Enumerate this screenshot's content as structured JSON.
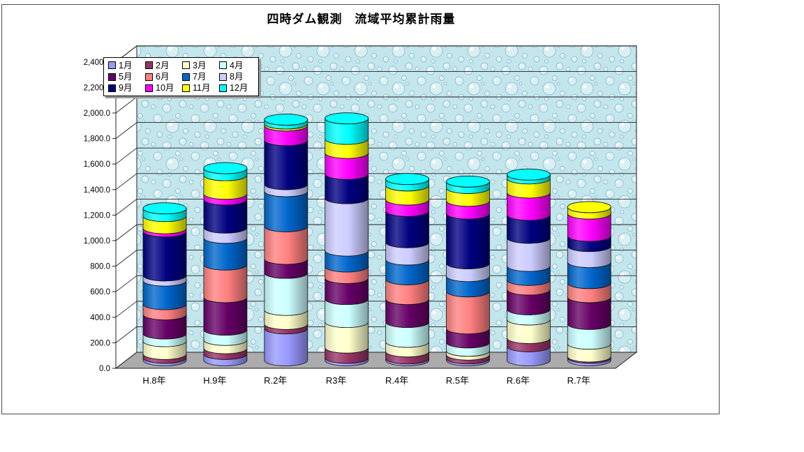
{
  "window": {
    "background": "#FFFFFF",
    "frame_border_color": "#4A4A4A"
  },
  "chart_data": {
    "type": "bar",
    "subtype": "3d-stacked-cylinder",
    "title": "四時ダム観測　流域平均累計雨量",
    "categories": [
      "H.8年",
      "H.9年",
      "R.2年",
      "R3年",
      "R.4年",
      "R.5年",
      "R.6年",
      "R.7年"
    ],
    "series": [
      {
        "name": "1月",
        "color": "#9999FF",
        "values": [
          20,
          50,
          250,
          20,
          15,
          15,
          110,
          20
        ]
      },
      {
        "name": "2月",
        "color": "#993366",
        "values": [
          30,
          45,
          35,
          80,
          55,
          30,
          65,
          10
        ]
      },
      {
        "name": "3月",
        "color": "#FFFFCC",
        "values": [
          100,
          65,
          110,
          200,
          75,
          30,
          145,
          100
        ]
      },
      {
        "name": "4月",
        "color": "#CCFFFF",
        "values": [
          60,
          80,
          290,
          180,
          155,
          65,
          80,
          155
        ]
      },
      {
        "name": "5月",
        "color": "#660066",
        "values": [
          150,
          255,
          110,
          165,
          180,
          110,
          155,
          210
        ]
      },
      {
        "name": "6月",
        "color": "#FF8080",
        "values": [
          80,
          255,
          255,
          90,
          155,
          290,
          75,
          110
        ]
      },
      {
        "name": "7月",
        "color": "#0066CC",
        "values": [
          185,
          210,
          275,
          125,
          155,
          120,
          110,
          165
        ]
      },
      {
        "name": "8月",
        "color": "#CCCCFF",
        "values": [
          40,
          80,
          55,
          410,
          135,
          100,
          220,
          125
        ]
      },
      {
        "name": "9月",
        "color": "#000080",
        "values": [
          345,
          220,
          345,
          190,
          245,
          390,
          180,
          80
        ]
      },
      {
        "name": "10月",
        "color": "#FF00FF",
        "values": [
          25,
          45,
          115,
          165,
          90,
          100,
          175,
          175
        ]
      },
      {
        "name": "11月",
        "color": "#FFFF00",
        "values": [
          95,
          145,
          15,
          110,
          110,
          100,
          110,
          50
        ]
      },
      {
        "name": "12月",
        "color": "#00FFFF",
        "values": [
          60,
          55,
          30,
          160,
          50,
          50,
          30,
          0
        ]
      }
    ],
    "stacked": true,
    "ylim": [
      0,
      2400
    ],
    "ytick_step": 200,
    "ytick_labels": [
      "0.0",
      "200.0",
      "400.0",
      "600.0",
      "800.0",
      "1,000.0",
      "1,200.0",
      "1,400.0",
      "1,600.0",
      "1,800.0",
      "2,000.0",
      "2,200.0",
      "2,400.0"
    ],
    "xlabel": "",
    "ylabel": "",
    "grid": true,
    "legend_position": "top-left",
    "wall_texture_base_color": "#C3E5EC",
    "floor_color": "#ABABAB"
  }
}
